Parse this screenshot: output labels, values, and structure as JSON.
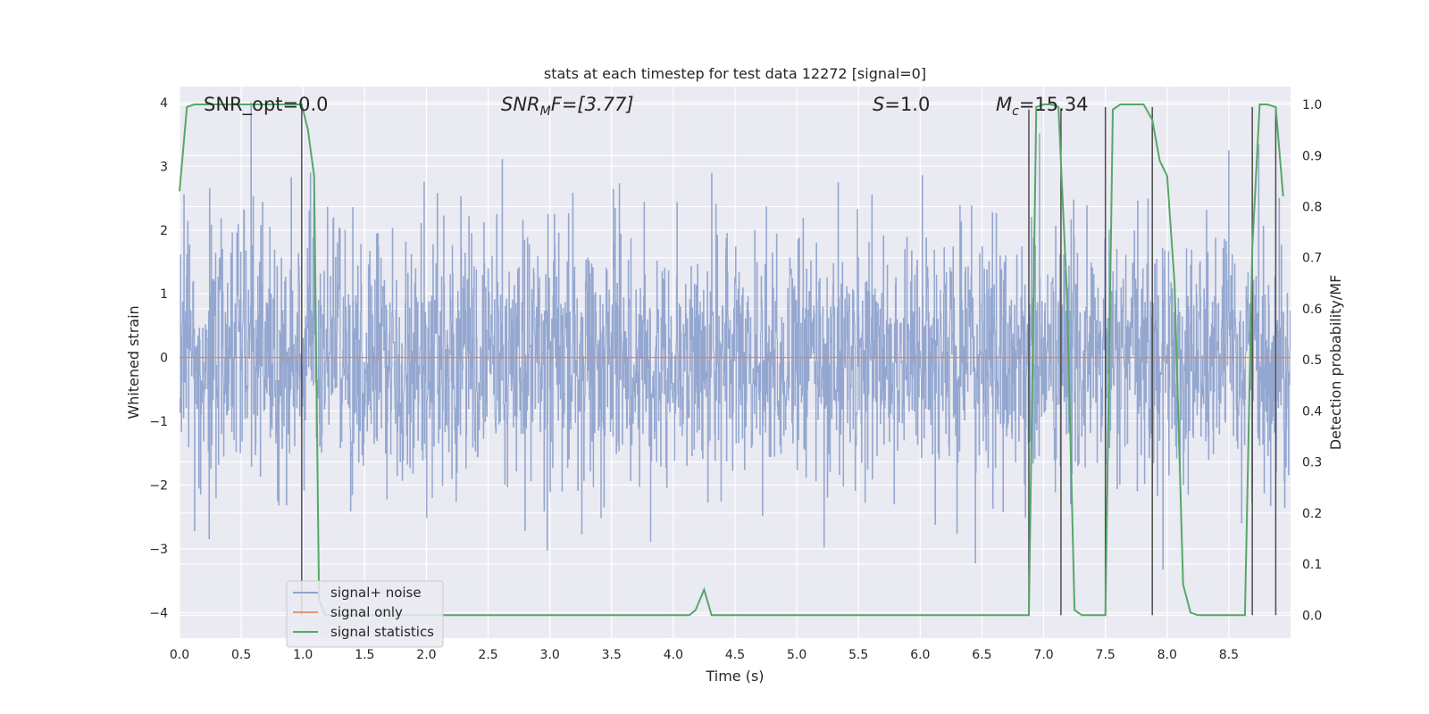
{
  "chart_data": {
    "type": "line",
    "title": "stats at each timestep for test data 12272 [signal=0]",
    "xlabel": "Time (s)",
    "ylabel": "Whitened strain",
    "y2label": "Detection probability/MF",
    "xlim": [
      0.0,
      9.0
    ],
    "ylim": [
      -4.4,
      4.25
    ],
    "y2lim": [
      -0.045,
      1.035
    ],
    "x_ticks": [
      0.0,
      0.5,
      1.0,
      1.5,
      2.0,
      2.5,
      3.0,
      3.5,
      4.0,
      4.5,
      5.0,
      5.5,
      6.0,
      6.5,
      7.0,
      7.5,
      8.0,
      8.5
    ],
    "x_tick_labels": [
      "0.0",
      "0.5",
      "1.0",
      "1.5",
      "2.0",
      "2.5",
      "3.0",
      "3.5",
      "4.0",
      "4.5",
      "5.0",
      "5.5",
      "6.0",
      "6.5",
      "7.0",
      "7.5",
      "8.0",
      "8.5"
    ],
    "y_ticks": [
      -4,
      -3,
      -2,
      -1,
      0,
      1,
      2,
      3,
      4
    ],
    "y_tick_labels": [
      "−4",
      "−3",
      "−2",
      "−1",
      "0",
      "1",
      "2",
      "3",
      "4"
    ],
    "y2_ticks": [
      0.0,
      0.1,
      0.2,
      0.3,
      0.4,
      0.5,
      0.6,
      0.7,
      0.8,
      0.9,
      1.0
    ],
    "y2_tick_labels": [
      "0.0",
      "0.1",
      "0.2",
      "0.3",
      "0.4",
      "0.5",
      "0.6",
      "0.7",
      "0.8",
      "0.9",
      "1.0"
    ],
    "grid": true,
    "legend_position": "lower-left",
    "annotations": {
      "snr_opt": "SNR_opt=0.0",
      "snr_mf_sym": "SNR",
      "snr_mf_sub": "M",
      "snr_mf_rest": "F=[3.77]",
      "s_sym": "S",
      "s_rest": "=1.0",
      "mc_sym": "M",
      "mc_sub": "c",
      "mc_rest": "=15.34"
    },
    "series": [
      {
        "name": "signal+ noise",
        "color": "#8fa3cd",
        "envelope_sigma": 1.0,
        "x_range": [
          0.0,
          9.0
        ]
      },
      {
        "name": "signal only",
        "color": "#dd8452",
        "x": [
          0.0,
          9.0
        ],
        "y": [
          0.0,
          0.0
        ]
      },
      {
        "name": "signal statistics",
        "color": "#55a868",
        "axis": "right",
        "x": [
          0.0,
          0.06,
          0.12,
          0.25,
          0.5,
          0.75,
          0.99,
          1.04,
          1.09,
          1.13,
          1.18,
          1.5,
          2.0,
          3.0,
          3.5,
          4.0,
          4.13,
          4.18,
          4.25,
          4.31,
          4.5,
          5.0,
          6.0,
          6.5,
          6.88,
          6.94,
          7.0,
          7.06,
          7.12,
          7.19,
          7.25,
          7.31,
          7.4,
          7.5,
          7.56,
          7.62,
          7.69,
          7.75,
          7.81,
          7.88,
          7.94,
          8.0,
          8.06,
          8.13,
          8.19,
          8.25,
          8.4,
          8.63,
          8.69,
          8.75,
          8.81,
          8.88,
          8.94
        ],
        "y": [
          0.83,
          0.995,
          1.0,
          1.0,
          1.0,
          1.0,
          1.0,
          0.95,
          0.86,
          0.03,
          0.0,
          0.0,
          0.0,
          0.0,
          0.0,
          0.0,
          0.0,
          0.01,
          0.05,
          0.0,
          0.0,
          0.0,
          0.0,
          0.0,
          0.0,
          0.995,
          1.0,
          1.0,
          0.995,
          0.62,
          0.01,
          0.0,
          0.0,
          0.0,
          0.99,
          1.0,
          1.0,
          1.0,
          1.0,
          0.97,
          0.89,
          0.86,
          0.65,
          0.06,
          0.005,
          0.0,
          0.0,
          0.0,
          0.72,
          1.0,
          1.0,
          0.995,
          0.82
        ]
      },
      {
        "name": "trigger markers",
        "color": "#4d4d4d",
        "markers": [
          {
            "x": 0.99,
            "y_top": 0.995,
            "y_bottom": 0.0
          },
          {
            "x": 6.88,
            "y_top": 0.99,
            "y_bottom": 0.0
          },
          {
            "x": 7.14,
            "y_top": 0.99,
            "y_bottom": 0.0
          },
          {
            "x": 7.5,
            "y_top": 0.995,
            "y_bottom": 0.0
          },
          {
            "x": 7.88,
            "y_top": 0.995,
            "y_bottom": 0.0
          },
          {
            "x": 8.69,
            "y_top": 0.995,
            "y_bottom": 0.0
          },
          {
            "x": 8.88,
            "y_top": 0.995,
            "y_bottom": 0.0
          }
        ]
      }
    ]
  }
}
